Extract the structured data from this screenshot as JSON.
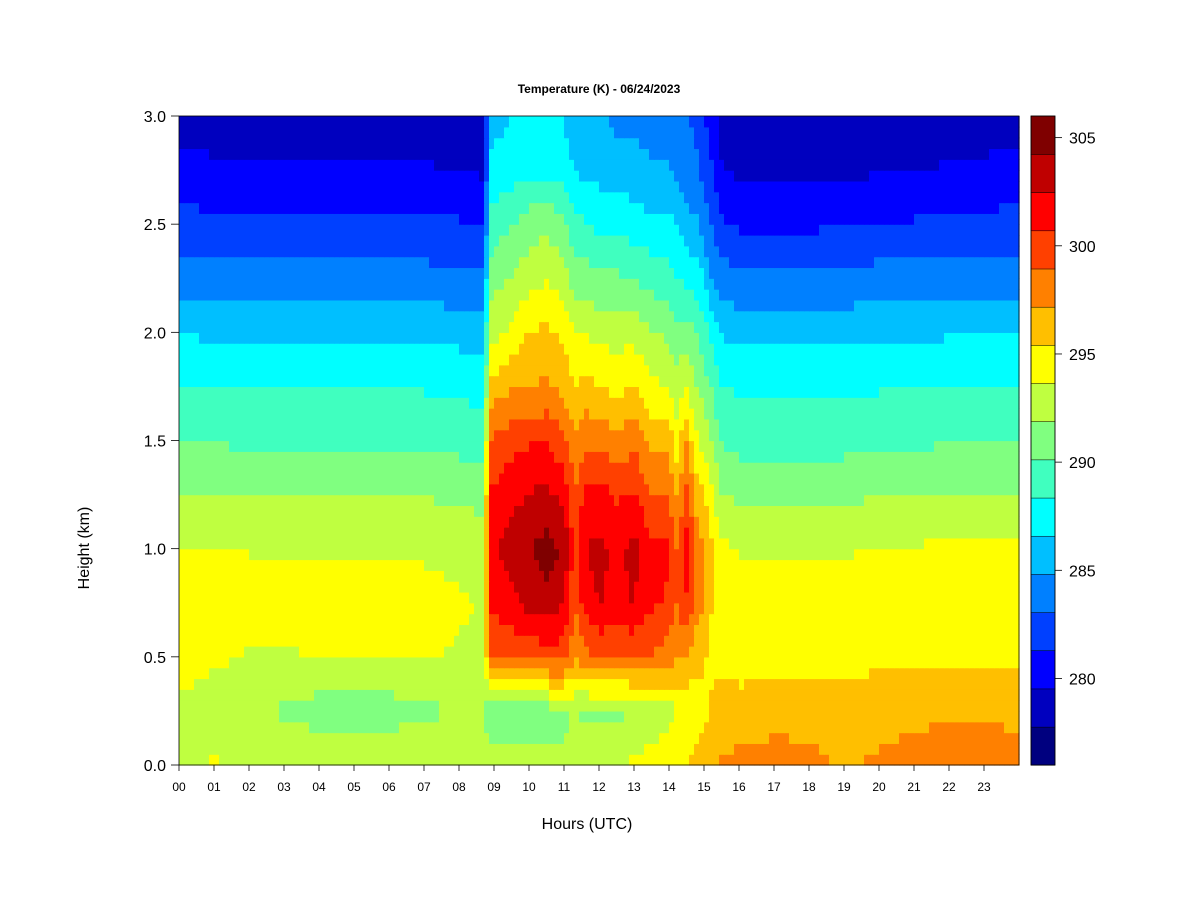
{
  "chart_data": {
    "type": "heatmap",
    "title": "Temperature (K) - 06/24/2023",
    "xlabel": "Hours (UTC)",
    "ylabel": "Height (km)",
    "x_ticks": [
      "00",
      "01",
      "02",
      "03",
      "04",
      "05",
      "06",
      "07",
      "08",
      "09",
      "10",
      "11",
      "12",
      "13",
      "14",
      "15",
      "16",
      "17",
      "18",
      "19",
      "20",
      "21",
      "22",
      "23"
    ],
    "y_ticks": [
      "0.0",
      "0.5",
      "1.0",
      "1.5",
      "2.0",
      "2.5",
      "3.0"
    ],
    "xlim": [
      0,
      24
    ],
    "ylim": [
      0.0,
      3.0
    ],
    "colorbar": {
      "ticks": [
        "280",
        "285",
        "290",
        "295",
        "300",
        "305"
      ],
      "range": [
        276,
        306
      ],
      "level_step": 2.5,
      "colors": [
        "#00007F",
        "#0000BF",
        "#0000FF",
        "#0040FF",
        "#0080FF",
        "#00BFFF",
        "#00FFFF",
        "#40FFBF",
        "#80FF80",
        "#BFFF40",
        "#FFFF00",
        "#FFBF00",
        "#FF8000",
        "#FF4000",
        "#FF0000",
        "#BF0000",
        "#7F0000"
      ]
    },
    "x_hours": [
      0,
      1,
      2,
      3,
      4,
      5,
      6,
      7,
      8,
      8.7,
      8.9,
      9.5,
      10,
      10.5,
      11,
      11.3,
      11.6,
      12,
      12.5,
      13,
      13.5,
      14,
      14.2,
      14.5,
      14.8,
      15,
      15.2,
      15.5,
      16,
      17,
      18,
      19,
      20,
      21,
      22,
      23,
      24
    ],
    "heights_km": [
      0.0,
      0.25,
      0.5,
      0.75,
      1.0,
      1.25,
      1.5,
      1.75,
      2.0,
      2.25,
      2.5,
      2.75,
      3.0
    ],
    "temperature_K": [
      [
        293.5,
        293.8,
        293.6,
        293.5,
        293.6,
        293.7,
        293.6,
        293.6,
        293.4,
        293.3,
        293.0,
        292.5,
        292.5,
        292.5,
        292.6,
        293.0,
        293.0,
        293.3,
        293.6,
        294.0,
        294.4,
        294.8,
        295.0,
        295.5,
        296.0,
        296.5,
        297.0,
        297.5,
        297.8,
        298.2,
        297.8,
        297.0,
        297.5,
        297.8,
        298.0,
        298.0,
        297.8
      ],
      [
        293.0,
        292.5,
        292.8,
        291.5,
        291.0,
        291.0,
        291.0,
        291.5,
        292.0,
        291.8,
        290.5,
        290.8,
        291.0,
        291.0,
        291.2,
        292.0,
        291.5,
        291.5,
        291.5,
        292.0,
        292.5,
        293.0,
        293.5,
        294.0,
        294.5,
        295.0,
        295.5,
        296.0,
        296.0,
        296.3,
        296.3,
        296.0,
        296.5,
        296.8,
        297.0,
        297.0,
        296.8
      ],
      [
        295.0,
        294.0,
        293.5,
        293.5,
        293.8,
        293.7,
        293.7,
        293.8,
        293.5,
        293.4,
        298.8,
        299.2,
        299.5,
        299.8,
        299.8,
        297.5,
        298.5,
        299.0,
        299.0,
        299.0,
        298.8,
        298.0,
        297.5,
        297.0,
        296.0,
        295.5,
        295.2,
        295.0,
        294.8,
        294.8,
        295.0,
        295.0,
        295.0,
        295.0,
        295.0,
        295.0,
        295.0
      ],
      [
        295.5,
        294.5,
        294.0,
        294.0,
        294.0,
        294.0,
        294.0,
        294.0,
        293.8,
        293.6,
        301.0,
        302.0,
        303.0,
        303.5,
        302.5,
        299.0,
        301.5,
        302.5,
        302.0,
        302.5,
        301.0,
        300.5,
        299.0,
        300.5,
        298.0,
        297.5,
        295.5,
        294.2,
        293.8,
        293.8,
        294.0,
        294.0,
        294.5,
        294.5,
        294.8,
        295.0,
        295.0
      ],
      [
        293.8,
        293.7,
        293.6,
        293.5,
        293.5,
        293.5,
        293.5,
        293.5,
        293.3,
        293.0,
        302.0,
        303.5,
        304.0,
        305.0,
        304.0,
        300.0,
        302.5,
        303.0,
        302.0,
        303.0,
        301.0,
        301.0,
        299.0,
        301.5,
        298.0,
        297.0,
        296.0,
        294.0,
        293.6,
        293.6,
        293.5,
        293.5,
        293.8,
        293.8,
        294.0,
        294.0,
        294.0
      ],
      [
        292.0,
        292.0,
        292.0,
        291.8,
        291.8,
        291.8,
        291.8,
        291.8,
        291.5,
        291.2,
        301.0,
        302.0,
        302.5,
        303.0,
        302.0,
        299.0,
        301.0,
        301.5,
        300.5,
        301.0,
        299.0,
        299.0,
        297.0,
        299.5,
        296.5,
        295.5,
        294.0,
        292.0,
        291.5,
        291.5,
        291.5,
        291.5,
        291.8,
        291.8,
        292.0,
        292.0,
        292.0
      ],
      [
        290.0,
        290.0,
        289.8,
        289.8,
        289.8,
        289.8,
        289.8,
        289.8,
        289.5,
        289.3,
        299.0,
        300.0,
        300.5,
        300.5,
        299.5,
        297.5,
        298.5,
        298.5,
        297.5,
        298.5,
        296.5,
        296.5,
        294.5,
        297.0,
        294.0,
        293.0,
        292.0,
        290.0,
        289.5,
        289.5,
        289.5,
        289.5,
        289.8,
        289.8,
        290.0,
        290.0,
        290.0
      ],
      [
        288.5,
        288.3,
        288.2,
        288.2,
        288.2,
        288.2,
        288.2,
        288.2,
        288.0,
        287.8,
        296.0,
        297.0,
        297.0,
        297.5,
        296.5,
        295.5,
        296.0,
        295.5,
        295.0,
        295.5,
        294.0,
        293.5,
        292.5,
        293.5,
        292.0,
        291.0,
        290.0,
        288.5,
        288.0,
        288.0,
        288.0,
        288.0,
        288.2,
        288.2,
        288.4,
        288.5,
        288.5
      ],
      [
        286.5,
        286.3,
        286.2,
        286.2,
        286.2,
        286.2,
        286.2,
        286.2,
        286.0,
        285.8,
        293.0,
        294.0,
        295.5,
        295.8,
        295.0,
        293.5,
        293.5,
        293.0,
        293.0,
        293.0,
        292.0,
        291.5,
        290.5,
        291.0,
        290.0,
        289.0,
        288.0,
        286.5,
        286.0,
        286.0,
        286.0,
        286.0,
        286.2,
        286.3,
        286.4,
        286.5,
        286.5
      ],
      [
        284.0,
        283.8,
        283.7,
        283.7,
        283.7,
        283.7,
        283.7,
        283.7,
        283.5,
        283.3,
        291.0,
        292.0,
        293.0,
        293.5,
        292.5,
        291.0,
        291.0,
        290.5,
        290.5,
        290.0,
        289.5,
        289.0,
        288.5,
        288.0,
        287.5,
        286.5,
        285.0,
        284.0,
        283.5,
        283.5,
        283.5,
        283.5,
        283.8,
        283.8,
        284.0,
        284.0,
        284.0
      ],
      [
        282.0,
        281.8,
        281.7,
        281.7,
        281.7,
        281.7,
        281.7,
        281.7,
        281.5,
        281.3,
        289.0,
        290.0,
        291.0,
        291.5,
        290.5,
        289.0,
        288.5,
        288.0,
        288.0,
        287.5,
        287.0,
        287.0,
        286.5,
        285.5,
        285.0,
        284.0,
        283.0,
        281.5,
        281.0,
        281.0,
        281.0,
        281.2,
        281.4,
        281.5,
        281.7,
        281.8,
        282.0
      ],
      [
        280.0,
        279.8,
        279.8,
        279.7,
        279.7,
        279.7,
        279.7,
        279.7,
        279.5,
        279.3,
        287.0,
        287.5,
        288.0,
        288.0,
        287.5,
        286.5,
        286.0,
        286.0,
        285.5,
        285.5,
        285.0,
        285.0,
        284.5,
        284.0,
        283.5,
        282.5,
        281.5,
        279.8,
        279.0,
        279.0,
        279.0,
        279.2,
        279.4,
        279.5,
        279.7,
        279.8,
        280.0
      ],
      [
        279.0,
        278.8,
        278.8,
        278.7,
        278.7,
        278.7,
        278.7,
        278.7,
        278.5,
        278.3,
        286.0,
        286.5,
        286.8,
        286.8,
        286.5,
        285.5,
        285.0,
        285.0,
        284.5,
        284.5,
        284.0,
        284.0,
        283.5,
        283.0,
        282.5,
        281.5,
        280.5,
        278.8,
        278.0,
        278.0,
        278.0,
        278.2,
        278.4,
        278.5,
        278.7,
        278.8,
        279.0
      ]
    ]
  }
}
